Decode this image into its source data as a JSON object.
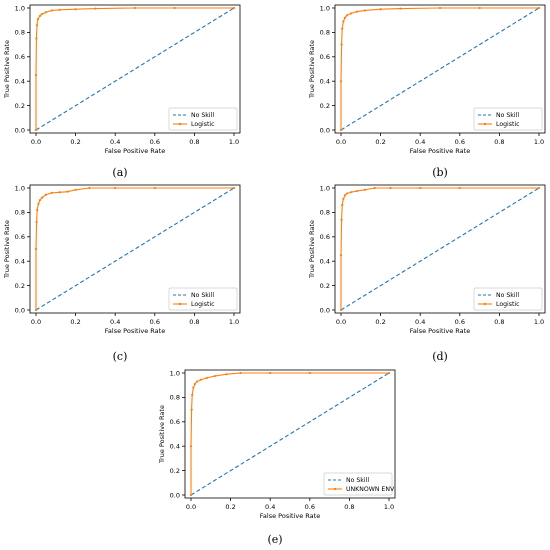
{
  "chart_data": [
    {
      "type": "line",
      "caption": "(a)",
      "xlabel": "False Positive Rate",
      "ylabel": "True Positive Rate",
      "xlim": [
        0.0,
        1.0
      ],
      "ylim": [
        0.0,
        1.0
      ],
      "xticks": [
        "0.0",
        "0.2",
        "0.4",
        "0.6",
        "0.8",
        "1.0"
      ],
      "yticks": [
        "0.0",
        "0.2",
        "0.4",
        "0.6",
        "0.8",
        "1.0"
      ],
      "legend_position": "bottom-right",
      "series": [
        {
          "name": "No Skill",
          "style": "dashed",
          "color": "#1f77b4",
          "x": [
            0,
            1
          ],
          "y": [
            0,
            1
          ]
        },
        {
          "name": "Logistic",
          "style": "solid-markers",
          "color": "#ff7f0e",
          "x": [
            0,
            0,
            0.002,
            0.005,
            0.01,
            0.02,
            0.03,
            0.05,
            0.08,
            0.12,
            0.2,
            0.3,
            0.5,
            0.7,
            1.0
          ],
          "y": [
            0,
            0.45,
            0.75,
            0.86,
            0.91,
            0.935,
            0.95,
            0.965,
            0.98,
            0.985,
            0.99,
            0.995,
            1.0,
            1.0,
            1.0
          ]
        }
      ]
    },
    {
      "type": "line",
      "caption": "(b)",
      "xlabel": "False Positive Rate",
      "ylabel": "True Positive Rate",
      "xlim": [
        0.0,
        1.0
      ],
      "ylim": [
        0.0,
        1.0
      ],
      "xticks": [
        "0.0",
        "0.2",
        "0.4",
        "0.6",
        "0.8",
        "1.0"
      ],
      "yticks": [
        "0.0",
        "0.2",
        "0.4",
        "0.6",
        "0.8",
        "1.0"
      ],
      "legend_position": "bottom-right",
      "series": [
        {
          "name": "No Skill",
          "style": "dashed",
          "color": "#1f77b4",
          "x": [
            0,
            1
          ],
          "y": [
            0,
            1
          ]
        },
        {
          "name": "Logistic",
          "style": "solid-markers",
          "color": "#ff7f0e",
          "x": [
            0,
            0,
            0.003,
            0.006,
            0.012,
            0.02,
            0.03,
            0.05,
            0.08,
            0.12,
            0.2,
            0.3,
            0.5,
            0.7,
            1.0
          ],
          "y": [
            0,
            0.4,
            0.7,
            0.83,
            0.89,
            0.92,
            0.94,
            0.955,
            0.97,
            0.98,
            0.99,
            0.995,
            1.0,
            1.0,
            1.0
          ]
        }
      ]
    },
    {
      "type": "line",
      "caption": "(c)",
      "xlabel": "False Positive Rate",
      "ylabel": "True Positive Rate",
      "xlim": [
        0.0,
        1.0
      ],
      "ylim": [
        0.0,
        1.0
      ],
      "xticks": [
        "0.0",
        "0.2",
        "0.4",
        "0.6",
        "0.8",
        "1.0"
      ],
      "yticks": [
        "0.0",
        "0.2",
        "0.4",
        "0.6",
        "0.8",
        "1.0"
      ],
      "legend_position": "bottom-right",
      "series": [
        {
          "name": "No Skill",
          "style": "dashed",
          "color": "#1f77b4",
          "x": [
            0,
            1
          ],
          "y": [
            0,
            1
          ]
        },
        {
          "name": "Logistic",
          "style": "solid-markers",
          "color": "#ff7f0e",
          "x": [
            0,
            0,
            0.003,
            0.006,
            0.012,
            0.02,
            0.03,
            0.05,
            0.08,
            0.12,
            0.16,
            0.2,
            0.27,
            0.4,
            0.6,
            1.0
          ],
          "y": [
            0,
            0.5,
            0.72,
            0.82,
            0.87,
            0.9,
            0.92,
            0.945,
            0.96,
            0.965,
            0.97,
            0.985,
            1.0,
            1.0,
            1.0,
            1.0
          ]
        }
      ]
    },
    {
      "type": "line",
      "caption": "(d)",
      "xlabel": "False Positive Rate",
      "ylabel": "True Positive Rate",
      "xlim": [
        0.0,
        1.0
      ],
      "ylim": [
        0.0,
        1.0
      ],
      "xticks": [
        "0.0",
        "0.2",
        "0.4",
        "0.6",
        "0.8",
        "1.0"
      ],
      "yticks": [
        "0.0",
        "0.2",
        "0.4",
        "0.6",
        "0.8",
        "1.0"
      ],
      "legend_position": "bottom-right",
      "series": [
        {
          "name": "No Skill",
          "style": "dashed",
          "color": "#1f77b4",
          "x": [
            0,
            1
          ],
          "y": [
            0,
            1
          ]
        },
        {
          "name": "Logistic",
          "style": "solid-markers",
          "color": "#ff7f0e",
          "x": [
            0,
            0,
            0.003,
            0.006,
            0.012,
            0.02,
            0.03,
            0.05,
            0.08,
            0.12,
            0.17,
            0.25,
            0.4,
            0.6,
            1.0
          ],
          "y": [
            0,
            0.45,
            0.74,
            0.86,
            0.91,
            0.94,
            0.955,
            0.965,
            0.975,
            0.985,
            1.0,
            1.0,
            1.0,
            1.0,
            1.0
          ]
        }
      ]
    },
    {
      "type": "line",
      "caption": "(e)",
      "xlabel": "False Positive Rate",
      "ylabel": "True Positive Rate",
      "xlim": [
        0.0,
        1.0
      ],
      "ylim": [
        0.0,
        1.0
      ],
      "xticks": [
        "0.0",
        "0.2",
        "0.4",
        "0.6",
        "0.8",
        "1.0"
      ],
      "yticks": [
        "0.0",
        "0.2",
        "0.4",
        "0.6",
        "0.8",
        "1.0"
      ],
      "legend_position": "bottom-right",
      "series": [
        {
          "name": "No Skill",
          "style": "dashed",
          "color": "#1f77b4",
          "x": [
            0,
            1
          ],
          "y": [
            0,
            1
          ]
        },
        {
          "name": "UNKNOWN ENV",
          "style": "solid-markers",
          "color": "#ff7f0e",
          "x": [
            0,
            0,
            0.003,
            0.006,
            0.012,
            0.02,
            0.03,
            0.05,
            0.08,
            0.12,
            0.18,
            0.25,
            0.4,
            0.6,
            1.0
          ],
          "y": [
            0,
            0.4,
            0.7,
            0.82,
            0.88,
            0.91,
            0.93,
            0.945,
            0.96,
            0.975,
            0.99,
            1.0,
            1.0,
            1.0,
            1.0
          ]
        }
      ]
    }
  ]
}
